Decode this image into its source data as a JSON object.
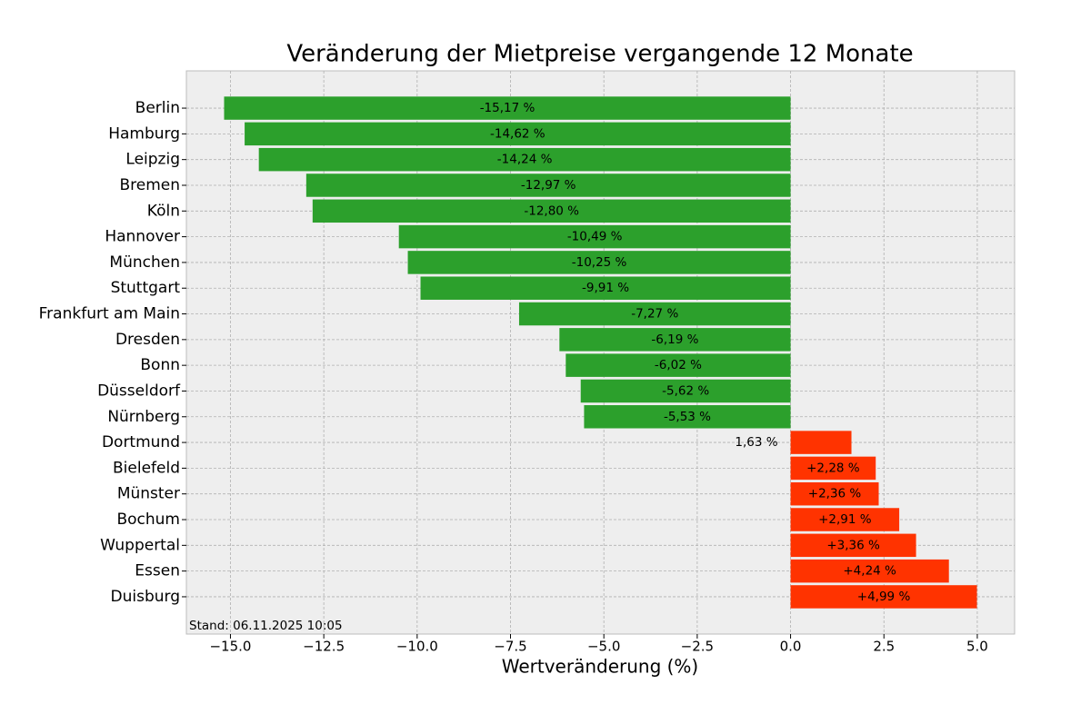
{
  "chart_data": {
    "type": "barh",
    "title": "Veränderung der Mietpreise vergangende 12 Monate",
    "xlabel": "Wertveränderung (%)",
    "annotation": "Stand: 06.11.2025 10:05",
    "categories": [
      "Berlin",
      "Hamburg",
      "Leipzig",
      "Bremen",
      "Köln",
      "Hannover",
      "München",
      "Stuttgart",
      "Frankfurt am Main",
      "Dresden",
      "Bonn",
      "Düsseldorf",
      "Nürnberg",
      "Dortmund",
      "Bielefeld",
      "Münster",
      "Bochum",
      "Wuppertal",
      "Essen",
      "Duisburg"
    ],
    "values": [
      -15.17,
      -14.62,
      -14.24,
      -12.97,
      -12.8,
      -10.49,
      -10.25,
      -9.91,
      -7.27,
      -6.19,
      -6.02,
      -5.62,
      -5.53,
      1.63,
      2.28,
      2.36,
      2.91,
      3.36,
      4.24,
      4.99
    ],
    "value_labels": [
      "-15,17 %",
      "-14,62 %",
      "-14,24 %",
      "-12,97 %",
      "-12,80 %",
      "-10,49 %",
      "-10,25 %",
      "-9,91 %",
      "-7,27 %",
      "-6,19 %",
      "-6,02 %",
      "-5,62 %",
      "-5,53 %",
      "1,63 %",
      "+2,28 %",
      "+2,36 %",
      "+2,91 %",
      "+3,36 %",
      "+4,24 %",
      "+4,99 %"
    ],
    "colors": {
      "negative": "#2ca02c",
      "positive": "#ff3300"
    },
    "xlim": [
      -16.18,
      6.0
    ],
    "xticks": [
      {
        "value": -15,
        "label": "−15.0"
      },
      {
        "value": -12.5,
        "label": "−12.5"
      },
      {
        "value": -10,
        "label": "−10.0"
      },
      {
        "value": -7.5,
        "label": "−7.5"
      },
      {
        "value": -5,
        "label": "−5.0"
      },
      {
        "value": -2.5,
        "label": "−2.5"
      },
      {
        "value": 0,
        "label": "0.0"
      },
      {
        "value": 2.5,
        "label": "2.5"
      },
      {
        "value": 5,
        "label": "5.0"
      }
    ],
    "grid": true
  }
}
